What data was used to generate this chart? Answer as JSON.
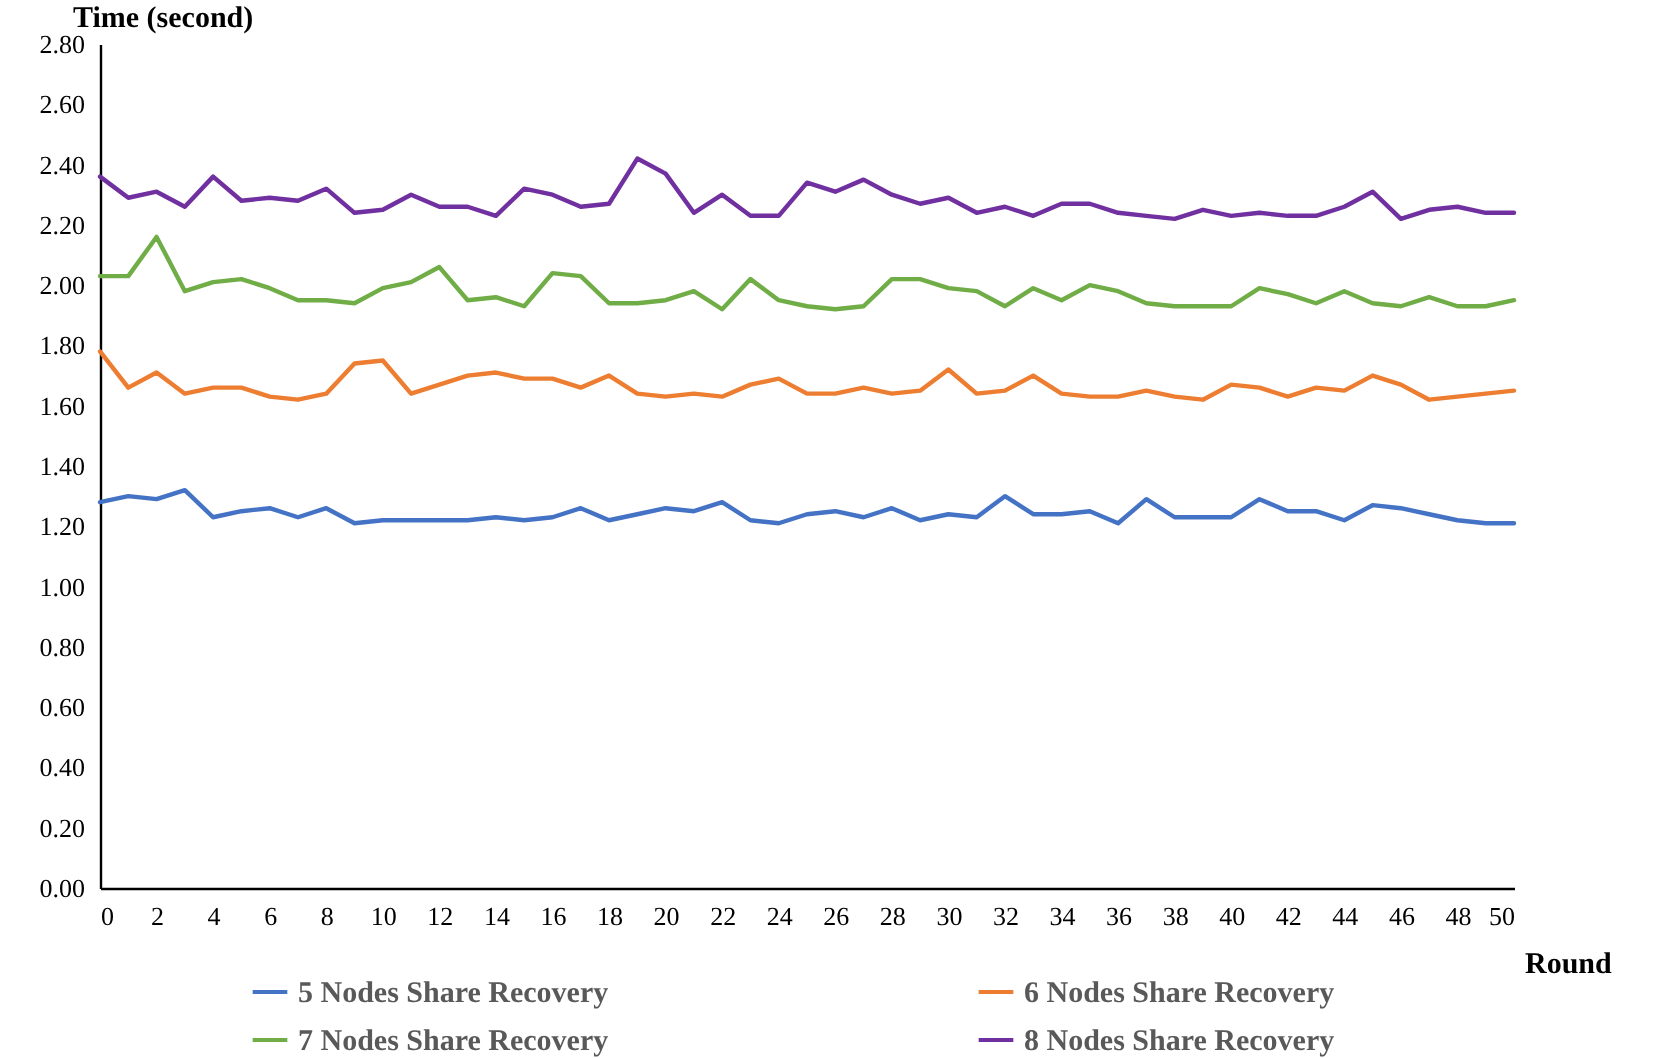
{
  "chart_data": {
    "type": "line",
    "ylabel": "Time (second)",
    "xlabel": "Round",
    "x": [
      0,
      1,
      2,
      3,
      4,
      5,
      6,
      7,
      8,
      9,
      10,
      11,
      12,
      13,
      14,
      15,
      16,
      17,
      18,
      19,
      20,
      21,
      22,
      23,
      24,
      25,
      26,
      27,
      28,
      29,
      30,
      31,
      32,
      33,
      34,
      35,
      36,
      37,
      38,
      39,
      40,
      41,
      42,
      43,
      44,
      45,
      46,
      47,
      48,
      49,
      50
    ],
    "xlim": [
      0,
      50
    ],
    "xticks": [
      0,
      2,
      4,
      6,
      8,
      10,
      12,
      14,
      16,
      18,
      20,
      22,
      24,
      26,
      28,
      30,
      32,
      34,
      36,
      38,
      40,
      42,
      44,
      46,
      48,
      50
    ],
    "ylim": [
      0,
      2.8
    ],
    "yticks": [
      {
        "value": 0,
        "label": "0.00"
      },
      {
        "value": 0.2,
        "label": "0.20"
      },
      {
        "value": 0.4,
        "label": "0.40"
      },
      {
        "value": 0.6,
        "label": "0.60"
      },
      {
        "value": 0.8,
        "label": "0.80"
      },
      {
        "value": 1,
        "label": "1.00"
      },
      {
        "value": 1.2,
        "label": "1.20"
      },
      {
        "value": 1.4,
        "label": "1.40"
      },
      {
        "value": 1.6,
        "label": "1.60"
      },
      {
        "value": 1.8,
        "label": "1.80"
      },
      {
        "value": 2,
        "label": "2.00"
      },
      {
        "value": 2.2,
        "label": "2.20"
      },
      {
        "value": 2.4,
        "label": "2.40"
      },
      {
        "value": 2.6,
        "label": "2.60"
      },
      {
        "value": 2.8,
        "label": "2.80"
      }
    ],
    "grid": false,
    "legend": "bottom",
    "marker": "none",
    "line_style": "solid",
    "series": [
      {
        "name": "5 Nodes Share Recovery",
        "color": "#4472c4",
        "values": [
          1.28,
          1.3,
          1.29,
          1.32,
          1.23,
          1.25,
          1.26,
          1.23,
          1.26,
          1.21,
          1.22,
          1.22,
          1.22,
          1.22,
          1.23,
          1.22,
          1.23,
          1.26,
          1.22,
          1.24,
          1.26,
          1.25,
          1.28,
          1.22,
          1.21,
          1.24,
          1.25,
          1.23,
          1.26,
          1.22,
          1.24,
          1.23,
          1.3,
          1.24,
          1.24,
          1.25,
          1.21,
          1.29,
          1.23,
          1.23,
          1.23,
          1.29,
          1.25,
          1.25,
          1.22,
          1.27,
          1.26,
          1.24,
          1.22,
          1.21,
          1.21
        ]
      },
      {
        "name": "6 Nodes Share Recovery",
        "color": "#ed7d31",
        "values": [
          1.78,
          1.66,
          1.71,
          1.64,
          1.66,
          1.66,
          1.63,
          1.62,
          1.64,
          1.74,
          1.75,
          1.64,
          1.67,
          1.7,
          1.71,
          1.69,
          1.69,
          1.66,
          1.7,
          1.64,
          1.63,
          1.64,
          1.63,
          1.67,
          1.69,
          1.64,
          1.64,
          1.66,
          1.64,
          1.65,
          1.72,
          1.64,
          1.65,
          1.7,
          1.64,
          1.63,
          1.63,
          1.65,
          1.63,
          1.62,
          1.67,
          1.66,
          1.63,
          1.66,
          1.65,
          1.7,
          1.67,
          1.62,
          1.63,
          1.64,
          1.65
        ]
      },
      {
        "name": "7 Nodes Share Recovery",
        "color": "#70ad47",
        "values": [
          2.03,
          2.03,
          2.16,
          1.98,
          2.01,
          2.02,
          1.99,
          1.95,
          1.95,
          1.94,
          1.99,
          2.01,
          2.06,
          1.95,
          1.96,
          1.93,
          2.04,
          2.03,
          1.94,
          1.94,
          1.95,
          1.98,
          1.92,
          2.02,
          1.95,
          1.93,
          1.92,
          1.93,
          2.02,
          2.02,
          1.99,
          1.98,
          1.93,
          1.99,
          1.95,
          2.0,
          1.98,
          1.94,
          1.93,
          1.93,
          1.93,
          1.99,
          1.97,
          1.94,
          1.98,
          1.94,
          1.93,
          1.96,
          1.93,
          1.93,
          1.95
        ]
      },
      {
        "name": "8 Nodes Share Recovery",
        "color": "#7030a0",
        "values": [
          2.36,
          2.29,
          2.31,
          2.26,
          2.36,
          2.28,
          2.29,
          2.28,
          2.32,
          2.24,
          2.25,
          2.3,
          2.26,
          2.26,
          2.23,
          2.32,
          2.3,
          2.26,
          2.27,
          2.42,
          2.37,
          2.24,
          2.3,
          2.23,
          2.23,
          2.34,
          2.31,
          2.35,
          2.3,
          2.27,
          2.29,
          2.24,
          2.26,
          2.23,
          2.27,
          2.27,
          2.24,
          2.23,
          2.22,
          2.25,
          2.23,
          2.24,
          2.23,
          2.23,
          2.26,
          2.31,
          2.22,
          2.25,
          2.26,
          2.24,
          2.24
        ]
      }
    ]
  }
}
